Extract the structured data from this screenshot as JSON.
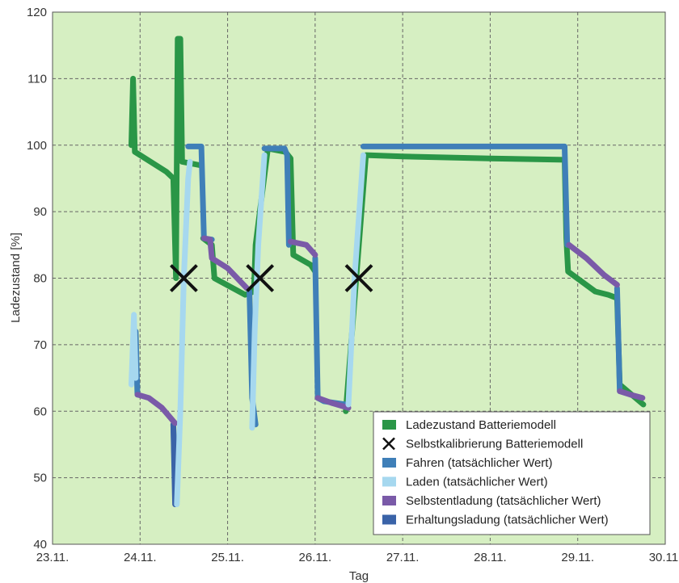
{
  "chart_data": {
    "type": "line",
    "title": "",
    "xlabel": "Tag",
    "ylabel": "Ladezustand [%]",
    "xlim": [
      0,
      7
    ],
    "ylim": [
      40,
      120
    ],
    "x_ticks": [
      {
        "value": 0,
        "label": "23.11."
      },
      {
        "value": 1,
        "label": "24.11."
      },
      {
        "value": 2,
        "label": "25.11."
      },
      {
        "value": 3,
        "label": "26.11."
      },
      {
        "value": 4,
        "label": "27.11."
      },
      {
        "value": 5,
        "label": "28.11."
      },
      {
        "value": 6,
        "label": "29.11."
      },
      {
        "value": 7,
        "label": "30.11."
      }
    ],
    "y_ticks": [
      40,
      50,
      60,
      70,
      80,
      90,
      100,
      110,
      120
    ],
    "grid": true,
    "legend_position": "bottom-right",
    "colors": {
      "plot_background": "#d6efc2",
      "model": "#2a9647",
      "calibration": "#111111",
      "driving": "#3f7fb8",
      "charging": "#a6d8ef",
      "self_discharge": "#7a5aa8",
      "maintenance": "#3a63a8"
    },
    "series": [
      {
        "name": "Ladezustand Batteriemodell",
        "color": "#2a9647",
        "segments": [
          [
            [
              0.9,
              100
            ],
            [
              0.92,
              110
            ],
            [
              0.94,
              99
            ],
            [
              1.3,
              96
            ],
            [
              1.38,
              95
            ],
            [
              1.41,
              80
            ],
            [
              1.43,
              116
            ],
            [
              1.46,
              116
            ],
            [
              1.48,
              97.5
            ],
            [
              1.68,
              97
            ]
          ],
          [
            [
              1.72,
              86
            ],
            [
              1.82,
              85
            ],
            [
              1.85,
              80
            ],
            [
              2.2,
              77.5
            ],
            [
              2.3,
              78
            ],
            [
              2.32,
              85
            ],
            [
              2.46,
              99.5
            ],
            [
              2.66,
              99
            ],
            [
              2.72,
              98
            ],
            [
              2.75,
              83.5
            ],
            [
              2.95,
              82
            ],
            [
              3.0,
              81
            ]
          ],
          [
            [
              3.35,
              60
            ],
            [
              3.58,
              98.5
            ],
            [
              4.0,
              98.3
            ],
            [
              5.0,
              98
            ],
            [
              5.85,
              97.8
            ],
            [
              5.87,
              86
            ],
            [
              5.89,
              81
            ],
            [
              6.2,
              78
            ],
            [
              6.35,
              77.5
            ],
            [
              6.45,
              77
            ],
            [
              6.48,
              64
            ],
            [
              6.75,
              61
            ]
          ]
        ]
      },
      {
        "name": "Selbstkalibrierung Batteriemodell",
        "color": "#111111",
        "markers": [
          [
            1.5,
            80
          ],
          [
            2.37,
            80
          ],
          [
            3.5,
            80
          ]
        ]
      },
      {
        "name": "Fahren (tatsächlicher Wert)",
        "color": "#3f7fb8",
        "segments": [
          [
            [
              0.95,
              72
            ],
            [
              0.97,
              62.5
            ]
          ],
          [
            [
              1.38,
              58
            ],
            [
              1.4,
              49
            ],
            [
              1.42,
              47
            ]
          ],
          [
            [
              1.55,
              99.8
            ],
            [
              1.7,
              99.8
            ],
            [
              1.73,
              86
            ],
            [
              1.82,
              85.8
            ]
          ],
          [
            [
              2.25,
              78
            ],
            [
              2.28,
              62
            ],
            [
              2.32,
              58
            ]
          ],
          [
            [
              2.42,
              99.5
            ],
            [
              2.65,
              99.5
            ],
            [
              2.68,
              98.5
            ],
            [
              2.7,
              85
            ]
          ],
          [
            [
              3.0,
              83
            ],
            [
              3.03,
              62
            ],
            [
              3.1,
              61.5
            ],
            [
              3.35,
              61
            ]
          ],
          [
            [
              3.55,
              99.8
            ],
            [
              4.0,
              99.8
            ],
            [
              5.0,
              99.8
            ],
            [
              5.85,
              99.8
            ],
            [
              5.88,
              85
            ]
          ],
          [
            [
              6.45,
              78.5
            ],
            [
              6.48,
              63
            ]
          ]
        ]
      },
      {
        "name": "Laden (tatsächlicher Wert)",
        "color": "#a6d8ef",
        "segments": [
          [
            [
              0.9,
              64
            ],
            [
              0.93,
              74.5
            ],
            [
              0.95,
              65
            ]
          ],
          [
            [
              1.42,
              46
            ],
            [
              1.46,
              60
            ],
            [
              1.5,
              80
            ],
            [
              1.55,
              95
            ],
            [
              1.57,
              97.5
            ]
          ],
          [
            [
              2.28,
              57.5
            ],
            [
              2.31,
              72
            ],
            [
              2.35,
              85
            ],
            [
              2.42,
              98.5
            ]
          ],
          [
            [
              3.38,
              61
            ],
            [
              3.45,
              80
            ],
            [
              3.55,
              98.5
            ]
          ]
        ]
      },
      {
        "name": "Selbstentladung (tatsächlicher Wert)",
        "color": "#7a5aa8",
        "segments": [
          [
            [
              0.97,
              62.5
            ],
            [
              1.1,
              62
            ],
            [
              1.25,
              60.5
            ],
            [
              1.4,
              58.2
            ]
          ],
          [
            [
              1.73,
              86
            ],
            [
              1.8,
              85.8
            ],
            [
              1.82,
              83
            ],
            [
              2.0,
              81.5
            ],
            [
              2.22,
              78.5
            ]
          ],
          [
            [
              2.72,
              85.5
            ],
            [
              2.9,
              85
            ],
            [
              3.0,
              83.5
            ]
          ],
          [
            [
              3.03,
              62
            ],
            [
              3.2,
              61.2
            ],
            [
              3.38,
              60.5
            ]
          ],
          [
            [
              5.9,
              85
            ],
            [
              6.1,
              83
            ],
            [
              6.3,
              80.5
            ],
            [
              6.45,
              79
            ]
          ],
          [
            [
              6.48,
              63
            ],
            [
              6.6,
              62.5
            ],
            [
              6.74,
              62
            ]
          ]
        ]
      },
      {
        "name": "Erhaltungsladung (tatsächlicher Wert)",
        "color": "#3a63a8",
        "segments": [
          [
            [
              1.38,
              58
            ],
            [
              1.4,
              46
            ]
          ]
        ]
      }
    ]
  }
}
